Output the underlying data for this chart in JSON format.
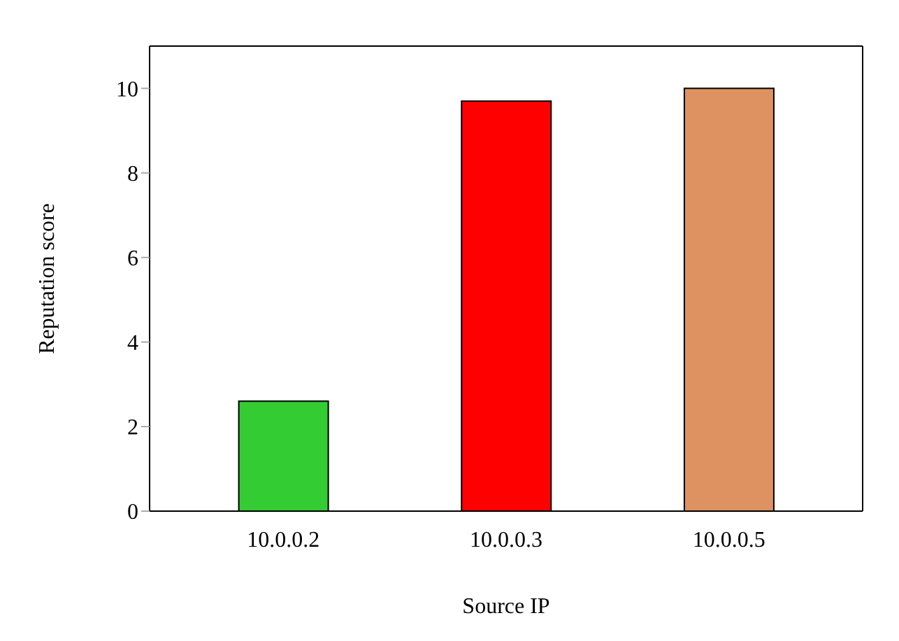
{
  "chart_data": {
    "type": "bar",
    "xlabel": "Source IP",
    "ylabel": "Reputation score",
    "categories": [
      "10.0.0.2",
      "10.0.0.3",
      "10.0.0.5"
    ],
    "values": [
      2.6,
      9.7,
      10
    ],
    "colors": [
      "#33cc33",
      "#ff0000",
      "#de9262"
    ],
    "ylim": [
      0,
      11
    ],
    "yticks": [
      0,
      2,
      4,
      6,
      8,
      10
    ],
    "grid": false
  }
}
